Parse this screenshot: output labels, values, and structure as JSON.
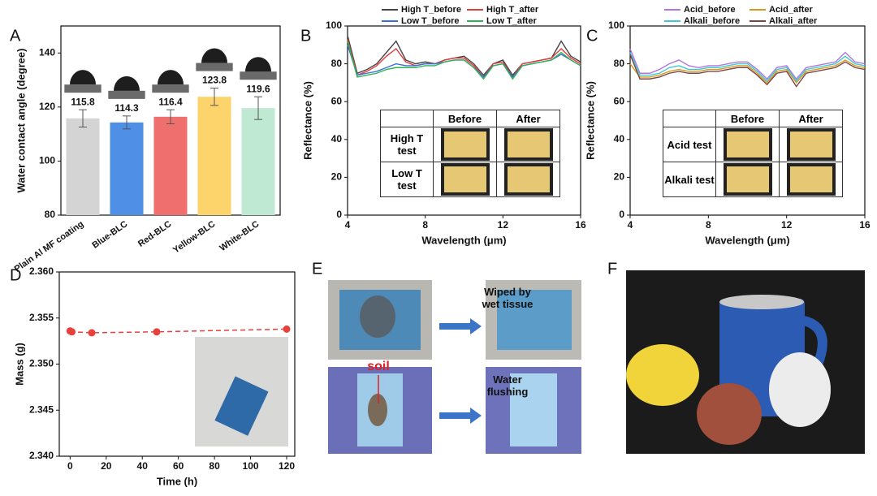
{
  "chart_data": [
    {
      "type": "bar",
      "panel": "A",
      "ylabel": "Water contact angle (degree)",
      "categories": [
        "Plain Al MF coating",
        "Blue-BLC",
        "Red-BLC",
        "Yellow-BLC",
        "White-BLC"
      ],
      "values": [
        115.8,
        114.3,
        116.4,
        123.8,
        119.6
      ],
      "errors": [
        3.2,
        2.4,
        2.6,
        3.2,
        4.2
      ],
      "colors": [
        "#d4d4d4",
        "#4f8fe6",
        "#ef6f6f",
        "#fdd46b",
        "#bfe9d3"
      ],
      "ylim": [
        80,
        150
      ],
      "yticks": [
        80,
        100,
        120,
        140
      ]
    },
    {
      "type": "line",
      "panel": "B",
      "xlabel": "Wavelength (μm)",
      "ylabel": "Reflectance (%)",
      "x": [
        4,
        4.5,
        5,
        5.5,
        6,
        6.5,
        7,
        7.5,
        8,
        8.5,
        9,
        9.5,
        10,
        10.5,
        11,
        11.5,
        12,
        12.5,
        13,
        13.5,
        14,
        14.5,
        15,
        15.5,
        16
      ],
      "series": [
        {
          "name": "High T_before",
          "color": "#454545",
          "values": [
            95,
            75,
            77,
            80,
            86,
            92,
            82,
            80,
            81,
            80,
            82,
            83,
            84,
            80,
            74,
            80,
            82,
            74,
            80,
            81,
            82,
            83,
            92,
            84,
            81
          ]
        },
        {
          "name": "High T_after",
          "color": "#e33a3a",
          "values": [
            93,
            74,
            76,
            79,
            84,
            88,
            81,
            79,
            80,
            80,
            82,
            83,
            83,
            79,
            73,
            80,
            81,
            73,
            80,
            81,
            82,
            83,
            88,
            83,
            80
          ]
        },
        {
          "name": "Low T_before",
          "color": "#3b70d4",
          "values": [
            90,
            74,
            75,
            76,
            78,
            80,
            79,
            79,
            80,
            80,
            81,
            82,
            82,
            78,
            73,
            79,
            80,
            73,
            79,
            80,
            81,
            82,
            85,
            82,
            79
          ]
        },
        {
          "name": "Low T_after",
          "color": "#2fb356",
          "values": [
            92,
            73,
            74,
            75,
            77,
            78,
            78,
            78,
            79,
            79,
            81,
            82,
            82,
            78,
            72,
            79,
            80,
            72,
            79,
            80,
            81,
            82,
            86,
            82,
            79
          ]
        }
      ],
      "xlim": [
        4,
        16
      ],
      "xticks": [
        4,
        8,
        12,
        16
      ],
      "ylim": [
        0,
        100
      ],
      "yticks": [
        0,
        20,
        40,
        60,
        80,
        100
      ],
      "legend": "top",
      "inset_table": {
        "columns": [
          "Before",
          "After"
        ],
        "rows": [
          "High T test",
          "Low T test"
        ]
      }
    },
    {
      "type": "line",
      "panel": "C",
      "xlabel": "Wavelength (μm)",
      "ylabel": "Reflectance (%)",
      "x": [
        4,
        4.5,
        5,
        5.5,
        6,
        6.5,
        7,
        7.5,
        8,
        8.5,
        9,
        9.5,
        10,
        10.5,
        11,
        11.5,
        12,
        12.5,
        13,
        13.5,
        14,
        14.5,
        15,
        15.5,
        16
      ],
      "series": [
        {
          "name": "Acid_before",
          "color": "#b374e3",
          "values": [
            88,
            75,
            75,
            77,
            80,
            82,
            79,
            78,
            79,
            79,
            80,
            81,
            81,
            77,
            72,
            78,
            79,
            72,
            78,
            79,
            80,
            81,
            86,
            81,
            80
          ]
        },
        {
          "name": "Acid_after",
          "color": "#d39a22",
          "values": [
            80,
            73,
            73,
            74,
            76,
            77,
            76,
            76,
            77,
            77,
            78,
            79,
            79,
            75,
            70,
            76,
            77,
            70,
            76,
            77,
            78,
            79,
            82,
            79,
            78
          ]
        },
        {
          "name": "Alkali_before",
          "color": "#3fcad2",
          "values": [
            86,
            74,
            74,
            75,
            78,
            79,
            77,
            77,
            78,
            78,
            79,
            80,
            80,
            76,
            71,
            77,
            78,
            71,
            77,
            78,
            79,
            80,
            84,
            80,
            79
          ]
        },
        {
          "name": "Alkali_after",
          "color": "#7d4444",
          "values": [
            85,
            72,
            72,
            73,
            75,
            76,
            75,
            75,
            76,
            76,
            77,
            78,
            78,
            74,
            69,
            75,
            76,
            68,
            75,
            76,
            77,
            78,
            81,
            78,
            77
          ]
        }
      ],
      "xlim": [
        4,
        16
      ],
      "xticks": [
        4,
        8,
        12,
        16
      ],
      "ylim": [
        0,
        100
      ],
      "yticks": [
        0,
        20,
        40,
        60,
        80,
        100
      ],
      "legend": "top",
      "inset_table": {
        "columns": [
          "Before",
          "After"
        ],
        "rows": [
          "Acid test",
          "Alkali test"
        ]
      }
    },
    {
      "type": "scatter",
      "panel": "D",
      "xlabel": "Time (h)",
      "ylabel": "Mass (g)",
      "x": [
        0,
        1,
        12,
        48,
        120
      ],
      "values": [
        2.3536,
        2.3535,
        2.3534,
        2.3535,
        2.3538
      ],
      "color": "#e8403c",
      "connect": "dashed",
      "xlim": [
        -6,
        124.5
      ],
      "xticks": [
        0,
        20,
        40,
        60,
        80,
        100,
        120
      ],
      "ylim": [
        2.34,
        2.36
      ],
      "yticks": [
        {
          "value": 2.34,
          "label": "2.340"
        },
        {
          "value": 2.345,
          "label": "2.345"
        },
        {
          "value": 2.35,
          "label": "2.350"
        },
        {
          "value": 2.355,
          "label": "2.355"
        },
        {
          "value": 2.36,
          "label": "2.360"
        }
      ]
    }
  ],
  "panel_E": {
    "label": "E",
    "captions": [
      "Wiped by wet tissue",
      "Water flushing"
    ],
    "annotation": "soil"
  },
  "panel_F": {
    "label": "F"
  }
}
